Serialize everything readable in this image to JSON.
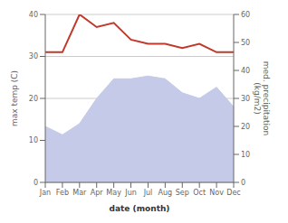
{
  "chart_data": {
    "type": "line",
    "categories": [
      "Jan",
      "Feb",
      "Mar",
      "Apr",
      "May",
      "Jun",
      "Jul",
      "Aug",
      "Sep",
      "Oct",
      "Nov",
      "Dec"
    ],
    "series": [
      {
        "type": "area",
        "axis": "y2",
        "color": "#c5cae9",
        "values": [
          20,
          17,
          21,
          30,
          37,
          37,
          38,
          37,
          32,
          30,
          34,
          27
        ]
      },
      {
        "type": "line",
        "color": "#c0392b",
        "values": [
          31,
          31,
          40,
          37,
          38,
          34,
          33,
          33,
          32,
          33,
          31,
          31
        ]
      }
    ],
    "xlabel": "date (month)",
    "ylabel": "max temp (C)",
    "y2label": "med. precipitation\n(kg/m2)",
    "ylim": [
      0,
      40
    ],
    "yticks": [
      0,
      10,
      20,
      30,
      40
    ],
    "y2lim": [
      0,
      60
    ],
    "y2ticks": [
      0,
      10,
      20,
      30,
      40,
      50,
      60
    ],
    "grid": true
  }
}
